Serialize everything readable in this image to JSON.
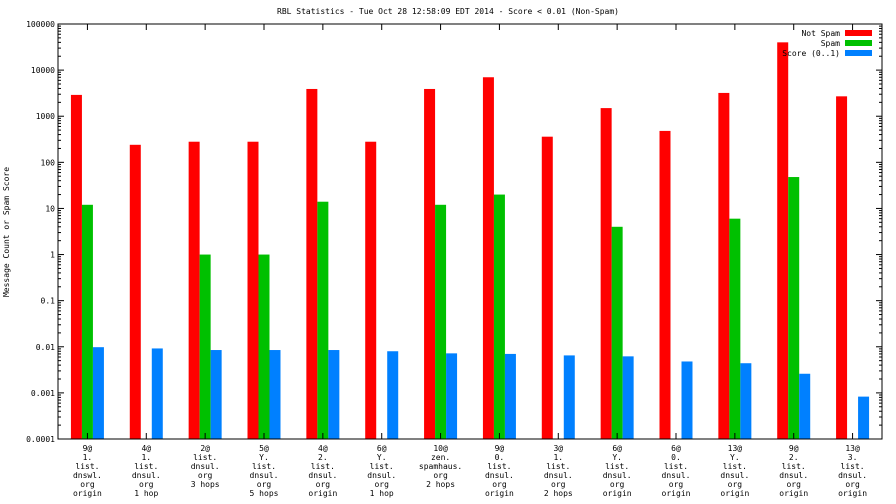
{
  "chart_data": {
    "type": "bar",
    "title": "RBL Statistics - Tue Oct 28 12:58:09 EDT 2014 - Score < 0.01 (Non-Spam)",
    "xlabel": "",
    "ylabel": "Message Count or Spam Score",
    "y_scale": "log",
    "ylim": [
      0.0001,
      100000
    ],
    "y_ticks": [
      {
        "value": 0.0001,
        "label": "0.0001"
      },
      {
        "value": 0.001,
        "label": "0.001"
      },
      {
        "value": 0.01,
        "label": "0.01"
      },
      {
        "value": 0.1,
        "label": "0.1"
      },
      {
        "value": 1,
        "label": "1"
      },
      {
        "value": 10,
        "label": "10"
      },
      {
        "value": 100,
        "label": "100"
      },
      {
        "value": 1000,
        "label": "1000"
      },
      {
        "value": 10000,
        "label": "10000"
      },
      {
        "value": 100000,
        "label": "100000"
      }
    ],
    "legend_position": "top-right",
    "categories": [
      [
        "9@",
        "1.",
        "list.",
        "dnswl.",
        "org",
        "origin"
      ],
      [
        "4@",
        "1.",
        "list.",
        "dnsul.",
        "org",
        "1 hop"
      ],
      [
        "2@",
        "list.",
        "dnsul.",
        "org",
        "3 hops"
      ],
      [
        "5@",
        "Y.",
        "list.",
        "dnsul.",
        "org",
        "5 hops"
      ],
      [
        "4@",
        "2.",
        "list.",
        "dnsul.",
        "org",
        "origin"
      ],
      [
        "6@",
        "Y.",
        "list.",
        "dnsul.",
        "org",
        "1 hop"
      ],
      [
        "10@",
        "zen.",
        "spamhaus.",
        "org",
        "2 hops"
      ],
      [
        "9@",
        "0.",
        "list.",
        "dnsul.",
        "org",
        "origin"
      ],
      [
        "3@",
        "1.",
        "list.",
        "dnsul.",
        "org",
        "2 hops"
      ],
      [
        "6@",
        "Y.",
        "list.",
        "dnsul.",
        "org",
        "origin"
      ],
      [
        "6@",
        "0.",
        "list.",
        "dnsul.",
        "org",
        "origin"
      ],
      [
        "13@",
        "Y.",
        "list.",
        "dnsul.",
        "org",
        "origin"
      ],
      [
        "9@",
        "2.",
        "list.",
        "dnsul.",
        "org",
        "origin"
      ],
      [
        "13@",
        "3.",
        "list.",
        "dnsul.",
        "org",
        "origin"
      ]
    ],
    "series": [
      {
        "name": "Not Spam",
        "color": "#ff0000",
        "values": [
          2900,
          240,
          280,
          280,
          3900,
          280,
          3900,
          7000,
          360,
          1500,
          480,
          3200,
          40000,
          2700
        ]
      },
      {
        "name": "Spam",
        "color": "#00c000",
        "values": [
          12,
          null,
          1,
          1,
          14,
          null,
          12,
          20,
          null,
          4,
          null,
          6,
          48,
          null
        ]
      },
      {
        "name": "Score (0..1)",
        "color": "#0080ff",
        "values": [
          0.0098,
          0.0092,
          0.0085,
          0.0085,
          0.0085,
          0.008,
          0.0072,
          0.007,
          0.0065,
          0.0062,
          0.0048,
          0.0044,
          0.0026,
          0.00083
        ]
      }
    ]
  }
}
